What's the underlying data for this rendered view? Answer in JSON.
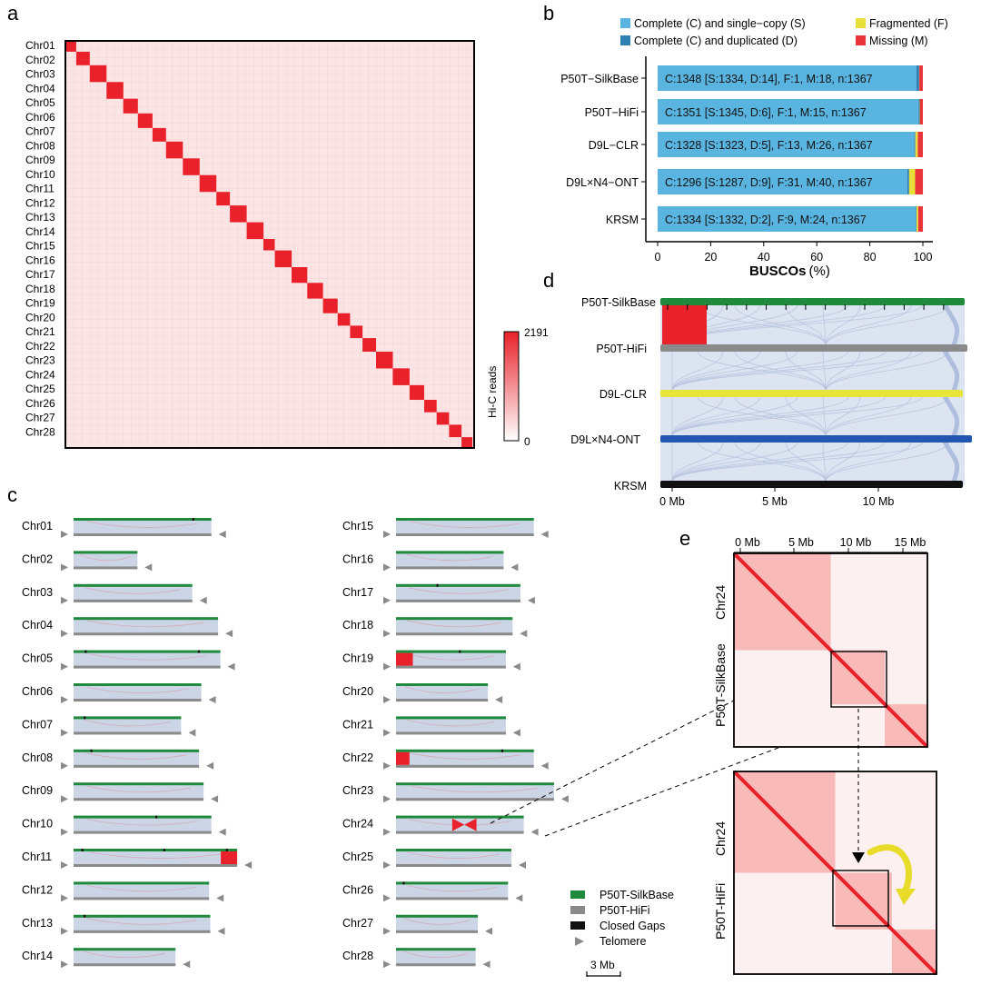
{
  "panels": {
    "a": "a",
    "b": "b",
    "c": "c",
    "d": "d",
    "e": "e"
  },
  "panel_a": {
    "chromosomes": [
      "Chr01",
      "Chr02",
      "Chr03",
      "Chr04",
      "Chr05",
      "Chr06",
      "Chr07",
      "Chr08",
      "Chr09",
      "Chr10",
      "Chr11",
      "Chr12",
      "Chr13",
      "Chr14",
      "Chr15",
      "Chr16",
      "Chr17",
      "Chr18",
      "Chr19",
      "Chr20",
      "Chr21",
      "Chr22",
      "Chr23",
      "Chr24",
      "Chr25",
      "Chr26",
      "Chr27",
      "Chr28"
    ],
    "colorbar": {
      "max": "2191",
      "min": "0",
      "label": "Hi-C reads",
      "colors": [
        "#e8212a",
        "#ffffff"
      ]
    }
  },
  "panel_b": {
    "legend": [
      {
        "label": "Complete (C) and single−copy (S)",
        "color": "#5ab4e0"
      },
      {
        "label": "Fragmented (F)",
        "color": "#e8e03a"
      },
      {
        "label": "Complete (C) and duplicated (D)",
        "color": "#2f7fb5"
      },
      {
        "label": "Missing (M)",
        "color": "#e8353a"
      }
    ],
    "xlabel": "BUSCOs",
    "xlabel_unit": "(%)",
    "ticks": [
      "0",
      "20",
      "40",
      "60",
      "80",
      "100"
    ],
    "chart_data": {
      "type": "bar",
      "orientation": "horizontal",
      "stacked": true,
      "xlim": [
        0,
        100
      ],
      "categories": [
        "P50T−SilkBase",
        "P50T−HiFi",
        "D9L−CLR",
        "D9L×N4−ONT",
        "KRSM"
      ],
      "series": [
        {
          "name": "Complete (C) and single−copy (S)",
          "values": [
            97.58,
            98.39,
            96.78,
            94.15,
            97.44
          ]
        },
        {
          "name": "Complete (C) and duplicated (D)",
          "values": [
            1.02,
            0.44,
            0.37,
            0.66,
            0.15
          ]
        },
        {
          "name": "Fragmented (F)",
          "values": [
            0.07,
            0.07,
            0.95,
            2.27,
            0.66
          ]
        },
        {
          "name": "Missing (M)",
          "values": [
            1.32,
            1.1,
            1.9,
            2.93,
            1.76
          ]
        }
      ],
      "bar_labels": [
        "C:1348 [S:1334, D:14], F:1, M:18, n:1367",
        "C:1351 [S:1345, D:6], F:1, M:15, n:1367",
        "C:1328 [S:1323, D:5], F:13, M:26, n:1367",
        "C:1296 [S:1287, D:9], F:31, M:40, n:1367",
        "C:1334 [S:1332, D:2], F:9, M:24, n:1367"
      ]
    }
  },
  "panel_c": {
    "left": [
      {
        "name": "Chr01",
        "len": 12.3,
        "gaps": [
          10.6
        ],
        "inv": 0
      },
      {
        "name": "Chr02",
        "len": 5.7,
        "gaps": [],
        "inv": 0
      },
      {
        "name": "Chr03",
        "len": 10.6,
        "gaps": [],
        "inv": 0
      },
      {
        "name": "Chr04",
        "len": 12.9,
        "gaps": [],
        "inv": 0
      },
      {
        "name": "Chr05",
        "len": 13.1,
        "gaps": [
          1.0,
          11.1
        ],
        "inv": 0
      },
      {
        "name": "Chr06",
        "len": 11.4,
        "gaps": [],
        "inv": 0
      },
      {
        "name": "Chr07",
        "len": 9.6,
        "gaps": [
          0.9
        ],
        "inv": 0
      },
      {
        "name": "Chr08",
        "len": 11.2,
        "gaps": [
          1.5
        ],
        "inv": 0
      },
      {
        "name": "Chr09",
        "len": 11.6,
        "gaps": [],
        "inv": 0
      },
      {
        "name": "Chr10",
        "len": 12.3,
        "gaps": [
          7.3
        ],
        "inv": 0
      },
      {
        "name": "Chr11",
        "len": 14.6,
        "gaps": [
          0.7,
          8.0,
          13.6
        ],
        "inv": 14.6
      },
      {
        "name": "Chr12",
        "len": 12.1,
        "gaps": [],
        "inv": 0
      },
      {
        "name": "Chr13",
        "len": 12.2,
        "gaps": [
          0.9
        ],
        "inv": 0
      },
      {
        "name": "Chr14",
        "len": 9.1,
        "gaps": [],
        "inv": 0
      }
    ],
    "right": [
      {
        "name": "Chr15",
        "len": 12.3,
        "gaps": [],
        "inv": 0
      },
      {
        "name": "Chr16",
        "len": 9.6,
        "gaps": [],
        "inv": 0
      },
      {
        "name": "Chr17",
        "len": 11.1,
        "gaps": [
          3.6
        ],
        "inv": 0
      },
      {
        "name": "Chr18",
        "len": 10.4,
        "gaps": [],
        "inv": 0
      },
      {
        "name": "Chr19",
        "len": 9.8,
        "gaps": [
          5.6
        ],
        "inv": 1.5
      },
      {
        "name": "Chr20",
        "len": 8.2,
        "gaps": [],
        "inv": 0
      },
      {
        "name": "Chr21",
        "len": 9.8,
        "gaps": [],
        "inv": 0
      },
      {
        "name": "Chr22",
        "len": 12.3,
        "gaps": [
          9.4
        ],
        "inv": 1.2
      },
      {
        "name": "Chr23",
        "len": 14.1,
        "gaps": [],
        "inv": 0
      },
      {
        "name": "Chr24",
        "len": 11.4,
        "gaps": [],
        "inv": -1
      },
      {
        "name": "Chr25",
        "len": 10.3,
        "gaps": [],
        "inv": 0
      },
      {
        "name": "Chr26",
        "len": 10.0,
        "gaps": [
          0.6
        ],
        "inv": 0
      },
      {
        "name": "Chr27",
        "len": 7.3,
        "gaps": [],
        "inv": 0
      },
      {
        "name": "Chr28",
        "len": 7.1,
        "gaps": [],
        "inv": 0
      }
    ],
    "legend": [
      {
        "label": "P50T-SilkBase",
        "color": "#1f8a3b",
        "shape": "bar"
      },
      {
        "label": "P50T-HiFi",
        "color": "#8a8a8a",
        "shape": "bar"
      },
      {
        "label": "Closed Gaps",
        "color": "#111111",
        "shape": "bar"
      },
      {
        "label": "Telomere",
        "color": "#8a8a8a",
        "shape": "triangle"
      }
    ],
    "scale_bar": "3 Mb",
    "colors": {
      "top": "#1f8a3b",
      "bottom": "#8a8a8a",
      "band": "#ccd5e6",
      "inversion": "#e8212a"
    }
  },
  "panel_d": {
    "assemblies": [
      {
        "name": "P50T-SilkBase",
        "color": "#1f8a3b"
      },
      {
        "name": "P50T-HiFi",
        "color": "#8a8a8a"
      },
      {
        "name": "D9L-CLR",
        "color": "#e8e53a"
      },
      {
        "name": "D9L×N4-ONT",
        "color": "#2256b0"
      },
      {
        "name": "KRSM",
        "color": "#111111"
      }
    ],
    "axis_ticks": [
      "0 Mb",
      "5 Mb",
      "10 Mb"
    ],
    "inversion_color": "#e8212a",
    "link_color": "#b4c2de"
  },
  "panel_e": {
    "axis_ticks": [
      "0 Mb",
      "5 Mb",
      "10 Mb",
      "15 Mb"
    ],
    "top_labels": [
      "Chr24",
      "P50T-SilkBase"
    ],
    "bottom_labels": [
      "Chr24",
      "P50T-HiFi"
    ],
    "arrow_color": "#e8dc2a"
  }
}
